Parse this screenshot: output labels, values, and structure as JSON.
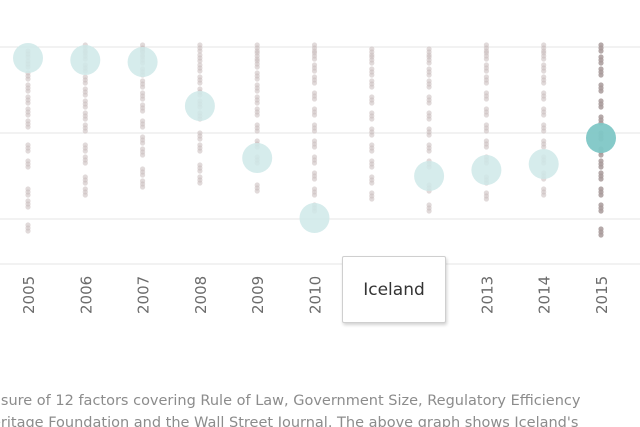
{
  "chart_data": {
    "type": "scatter",
    "x": [
      "2005",
      "2006",
      "2007",
      "2008",
      "2009",
      "2010",
      "2011",
      "2012",
      "2013",
      "2014",
      "2015"
    ],
    "highlight_series": {
      "name": "Iceland",
      "years": [
        "2005",
        "2006",
        "2007",
        "2008",
        "2009",
        "2010",
        "2012",
        "2013",
        "2014",
        "2015"
      ],
      "relative_values": [
        0.95,
        0.94,
        0.93,
        0.71,
        0.45,
        0.15,
        0.36,
        0.39,
        0.42,
        0.55
      ]
    },
    "other_countries_relative_spread": [
      [
        0.1,
        0.22,
        0.28,
        0.42,
        0.5,
        0.62,
        0.68,
        0.74,
        0.8,
        0.86,
        0.92,
        0.97
      ],
      [
        0.28,
        0.34,
        0.44,
        0.5,
        0.6,
        0.66,
        0.72,
        0.78,
        0.84,
        0.9,
        0.96,
        1.0
      ],
      [
        0.32,
        0.38,
        0.48,
        0.54,
        0.62,
        0.7,
        0.76,
        0.82,
        0.88,
        0.94,
        0.98,
        1.0
      ],
      [
        0.34,
        0.4,
        0.5,
        0.56,
        0.66,
        0.72,
        0.78,
        0.84,
        0.9,
        0.95,
        1.0
      ],
      [
        0.3,
        0.44,
        0.52,
        0.6,
        0.68,
        0.74,
        0.8,
        0.86,
        0.92,
        0.96,
        1.0
      ],
      [
        0.2,
        0.28,
        0.36,
        0.44,
        0.52,
        0.6,
        0.68,
        0.76,
        0.84,
        0.9,
        0.96,
        1.0
      ],
      [
        0.26,
        0.34,
        0.42,
        0.5,
        0.58,
        0.66,
        0.74,
        0.82,
        0.88,
        0.94,
        0.98
      ],
      [
        0.2,
        0.3,
        0.42,
        0.5,
        0.58,
        0.66,
        0.74,
        0.82,
        0.88,
        0.94,
        0.98
      ],
      [
        0.26,
        0.34,
        0.44,
        0.52,
        0.6,
        0.68,
        0.76,
        0.84,
        0.9,
        0.96,
        1.0
      ],
      [
        0.28,
        0.36,
        0.44,
        0.52,
        0.6,
        0.68,
        0.76,
        0.84,
        0.9,
        0.96,
        1.0
      ],
      [
        0.08,
        0.2,
        0.28,
        0.36,
        0.42,
        0.48,
        0.56,
        0.64,
        0.72,
        0.8,
        0.88,
        0.94,
        1.0
      ]
    ],
    "grid": true,
    "colors": {
      "highlight_light": "#cfe9e9",
      "highlight_selected": "#7fc7c6",
      "other_points": "#c9bcbc",
      "other_points_2015": "#a89a9a",
      "grid": "#e6e6e6"
    }
  },
  "tooltip": {
    "label": "Iceland"
  },
  "caption": {
    "line1": "asure of 12 factors covering Rule of Law, Government Size, Regulatory Efficiency",
    "line2": "eritage Foundation and the Wall Street Journal. The above graph shows Iceland's"
  }
}
